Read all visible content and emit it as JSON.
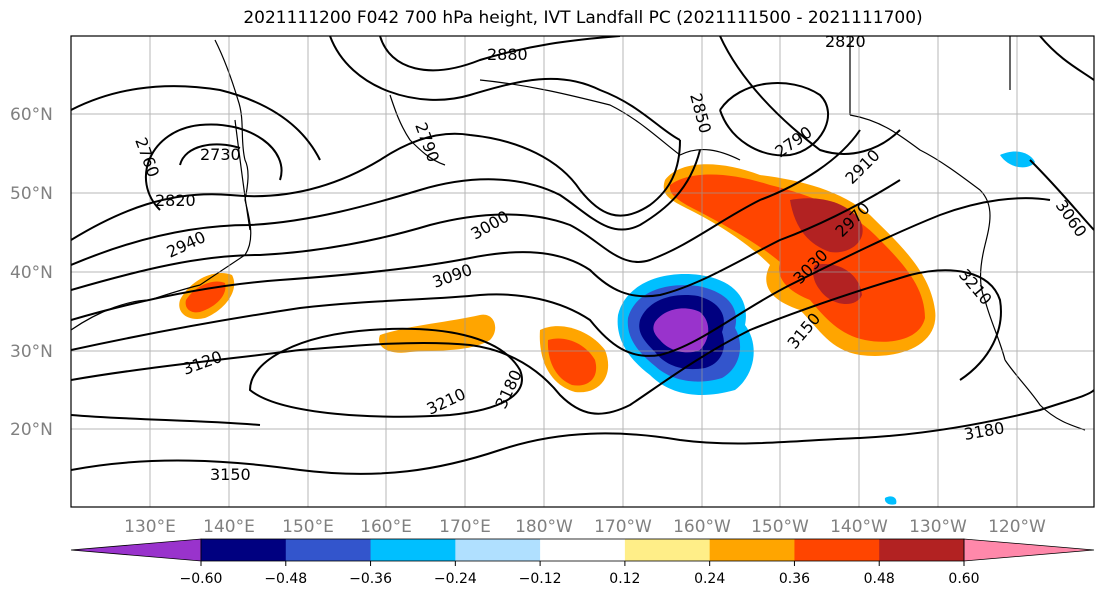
{
  "title": "2021111200 F042 700 hPa height, IVT Landfall PC (2021111500 - 2021111700)",
  "lat_labels": [
    "60°N",
    "50°N",
    "40°N",
    "30°N",
    "20°N"
  ],
  "lon_labels": [
    "130°E",
    "140°E",
    "150°E",
    "160°E",
    "170°E",
    "180°W",
    "170°W",
    "160°W",
    "150°W",
    "140°W",
    "130°W",
    "120°W"
  ],
  "contour_labels": [
    "2880",
    "2820",
    "2850",
    "2790",
    "2760",
    "2730",
    "2790",
    "2820",
    "2910",
    "2940",
    "2970",
    "3000",
    "3060",
    "3030",
    "3090",
    "3210",
    "3150",
    "3120",
    "3210",
    "3180",
    "3180",
    "3150"
  ],
  "colorbar": {
    "colors": [
      "#9933cc",
      "#000080",
      "#3355cc",
      "#00bfff",
      "#b0e0ff",
      "#ffffff",
      "#ffee88",
      "#ffa500",
      "#ff4500",
      "#b22222",
      "#ff88aa"
    ],
    "ticks": [
      "−0.60",
      "−0.48",
      "−0.36",
      "−0.24",
      "−0.12",
      "0.12",
      "0.24",
      "0.36",
      "0.48",
      "0.60"
    ]
  }
}
